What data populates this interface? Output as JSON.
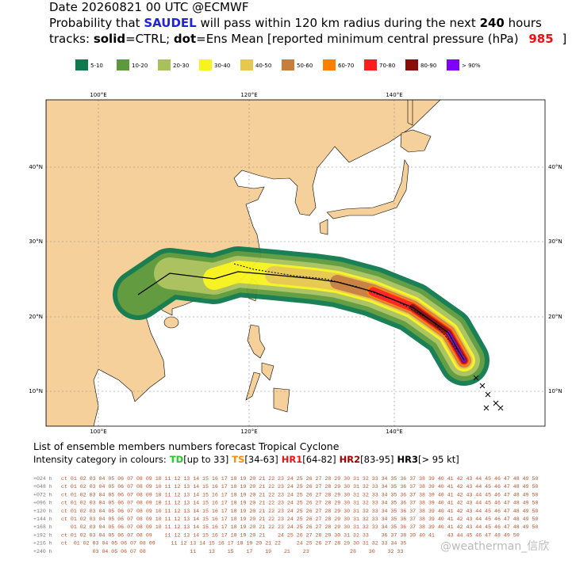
{
  "header": {
    "line1": "Date 20260821 00 UTC   @ECMWF",
    "prob_prefix": "Probability that",
    "storm": "SAUDEL",
    "prob_middle": "will pass within 120 km radius during the next",
    "hours": "240",
    "prob_suffix": "hours",
    "tracks_prefix": "tracks:",
    "solid": "solid",
    "solid_text": "=CTRL;",
    "dot": "dot",
    "dot_text": "=Ens Mean [reported minimum central pressure (hPa)",
    "pressure": "985",
    "close": "]"
  },
  "legend": {
    "items": [
      {
        "label": "5-10",
        "color": "#0f7a4e"
      },
      {
        "label": "10-20",
        "color": "#5c9a3c"
      },
      {
        "label": "20-30",
        "color": "#a9c15c"
      },
      {
        "label": "30-40",
        "color": "#f6f41e"
      },
      {
        "label": "40-50",
        "color": "#e6c84e"
      },
      {
        "label": "50-60",
        "color": "#c77e3c"
      },
      {
        "label": "60-70",
        "color": "#ff7f00"
      },
      {
        "label": "70-80",
        "color": "#ff1c1c"
      },
      {
        "label": "80-90",
        "color": "#8b0a0a"
      },
      {
        "label": "> 90%",
        "color": "#8000ff"
      }
    ]
  },
  "map": {
    "lon_labels": [
      "100°E",
      "120°E",
      "140°E"
    ],
    "lat_labels": [
      "40°N",
      "30°N",
      "20°N",
      "10°N"
    ]
  },
  "members": {
    "title": "List of ensemble members numbers forecast Tropical Cyclone",
    "intensity_prefix": "Intensity category in colours:",
    "categories": [
      {
        "label": "TD",
        "range": "[up to 33]",
        "color": "#22cc22"
      },
      {
        "label": "TS",
        "range": "[34-63]",
        "color": "#ff8a00"
      },
      {
        "label": "HR1",
        "range": "[64-82]",
        "color": "#ee1111"
      },
      {
        "label": "HR2",
        "range": "[83-95]",
        "color": "#990000"
      },
      {
        "label": "HR3",
        "range": "[> 95 kt]",
        "color": "#000000"
      }
    ],
    "rows": [
      {
        "label": "+024 h",
        "text": "ct 01 02 03 04 05 06 07 08 09 10 11 12 13 14 15 16 17 18 19 20 21 22 23 24 25 26 27 28 29 30 31 32 33 34 35 36 37 38 39 40 41 42 43 44 45 46 47 48 49 50"
      },
      {
        "label": "+048 h",
        "text": "ct 01 02 03 04 05 06 07 08 09 10 11 12 13 14 15 16 17 18 19 20 21 22 23 24 25 26 27 28 29 30 31 32 33 34 35 36 37 38 39 40 41 42 43 44 45 46 47 48 49 50"
      },
      {
        "label": "+072 h",
        "text": "ct 01 02 03 04 05 06 07 08 09 10 11 12 13 14 15 16 17 18 19 20 21 22 23 24 25 26 27 28 29 30 31 32 33 34 35 36 37 38 39 40 41 42 43 44 45 46 47 48 49 50"
      },
      {
        "label": "+096 h",
        "text": "ct 01 02 03 04 05 06 07 08 09 10 11 12 13 14 15 16 17 18 19 20 21 22 23 24 25 26 27 28 29 30 31 32 33 34 35 36 37 38 39 40 41 42 43 44 45 46 47 48 49 50"
      },
      {
        "label": "+120 h",
        "text": "ct 01 02 03 04 05 06 07 08 09 10 11 12 13 14 15 16 17 18 19 20 21 22 23 24 25 26 27 28 29 30 31 32 33 34 35 36 37 38 39 40 41 42 43 44 45 46 47 48 49 50"
      },
      {
        "label": "+144 h",
        "text": "ct 01 02 03 04 05 06 07 08 09 10 11 12 13 14 15 16 17 18 19 20 21 22 23 24 25 26 27 28 29 30 31 32 33 34 35 36 37 38 39 40 41 42 43 44 45 46 47 48 49 50"
      },
      {
        "label": "+168 h",
        "text": "   01 02 03 04 05 06 07 08 09 10 11 12 13 14 15 16 17 18 19 20 21 22 23 24 25 26 27 28 29 30 31 32 33 34 35 36 37 38 39 40 41 42 43 44 45 46 47 48 49 50"
      },
      {
        "label": "+192 h",
        "text": "ct 01 02 03 04 05 06 07 08 09    11 12 13 14 15 16 17 18 19 20 21    24 25 26 27 28 29 30 31 32 33    36 37 38 39 40 41    43 44 45 46 47 48 49 50"
      },
      {
        "label": "+216 h",
        "text": "ct  01 02 03 04 05 06 07 08 09     11 12 13 14 15 16 17 18 19 20 21 22     24 25 26 27 28 29 30 31 32 33 34 35"
      },
      {
        "label": "+240 h",
        "text": "          03 04 05 06 07 08              11    13    15    17    19    21    23             28    30    32 33"
      }
    ]
  },
  "watermark": "@weatherman_信欣"
}
